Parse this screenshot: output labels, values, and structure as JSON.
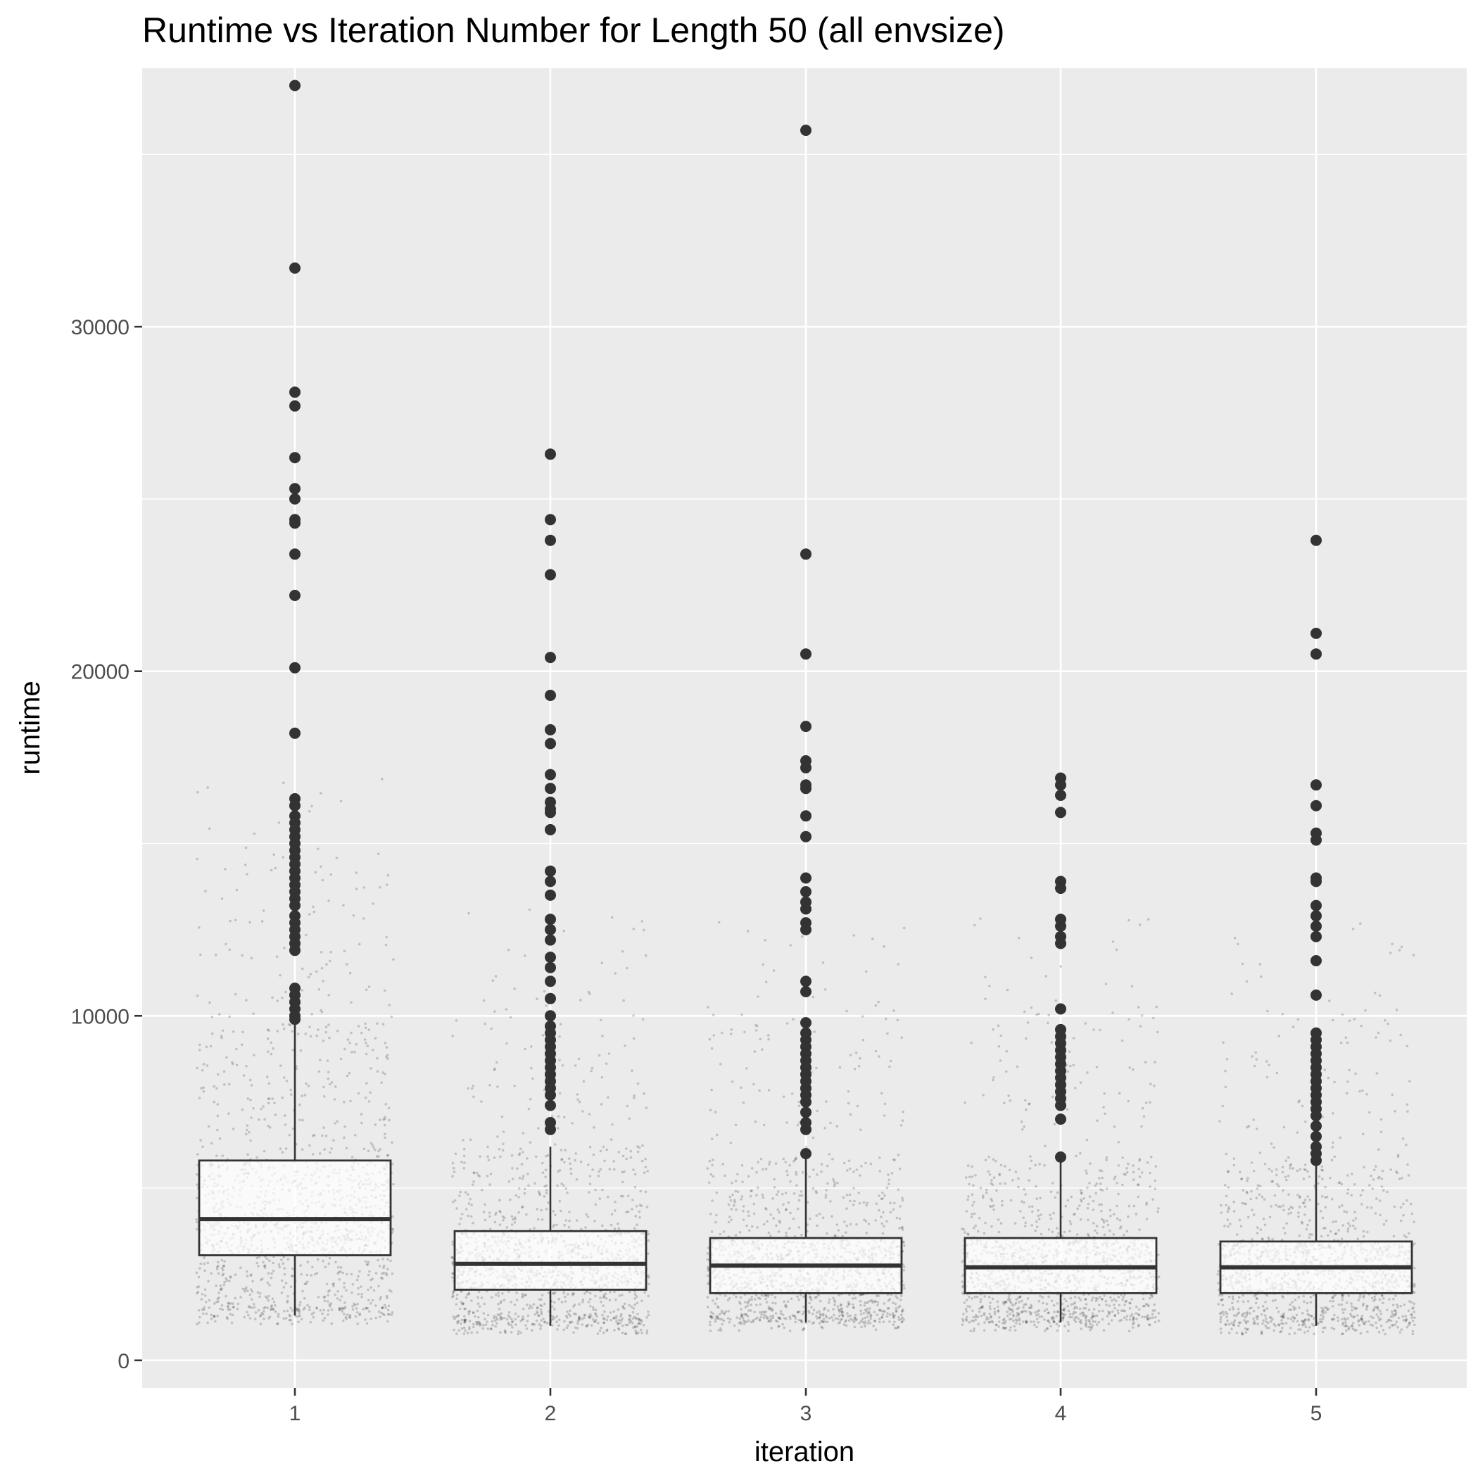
{
  "chart_data": {
    "type": "boxplot",
    "title": "Runtime vs Iteration Number for Length 50 (all envsize)",
    "xlabel": "iteration",
    "ylabel": "runtime",
    "ylim": [
      -800,
      37500
    ],
    "yticks": [
      0,
      10000,
      20000,
      30000
    ],
    "ytick_labels": [
      "0",
      "10000",
      "20000",
      "30000"
    ],
    "grid": true,
    "legend": "none",
    "colors": {
      "panel": "#ebebeb",
      "grid": "#ffffff",
      "box_fill": "#ffffff",
      "box_line": "#333333",
      "jitter": "#000000",
      "outlier": "#333333"
    },
    "categories": [
      "1",
      "2",
      "3",
      "4",
      "5"
    ],
    "boxes": [
      {
        "iteration": "1",
        "whisker_low": 1300,
        "q1": 3050,
        "median": 4100,
        "q3": 5800,
        "whisker_high": 9900,
        "outliers": [
          37000,
          31700,
          28100,
          27700,
          26200,
          25300,
          25000,
          24400,
          24300,
          23400,
          22200,
          20100,
          18200,
          16300,
          16100,
          15800,
          15600,
          15400,
          15200,
          15000,
          14800,
          14600,
          14400,
          14200,
          14000,
          13800,
          13600,
          13400,
          13200,
          12900,
          12700,
          12500,
          12300,
          12100,
          11900,
          10800,
          10600,
          10400,
          10200,
          10000,
          9900
        ]
      },
      {
        "iteration": "2",
        "whisker_low": 1000,
        "q1": 2050,
        "median": 2800,
        "q3": 3750,
        "whisker_high": 6200,
        "outliers": [
          26300,
          24400,
          23800,
          22800,
          20400,
          19300,
          18300,
          17900,
          17000,
          16600,
          16200,
          16000,
          15900,
          15400,
          14200,
          13900,
          13500,
          12800,
          12500,
          12200,
          11700,
          11400,
          11000,
          10500,
          10000,
          9700,
          9500,
          9300,
          9100,
          8900,
          8700,
          8500,
          8300,
          8100,
          7900,
          7700,
          7400,
          6900,
          6700
        ]
      },
      {
        "iteration": "3",
        "whisker_low": 1100,
        "q1": 1950,
        "median": 2750,
        "q3": 3550,
        "whisker_high": 5900,
        "outliers": [
          35700,
          23400,
          20500,
          18400,
          17400,
          17200,
          16700,
          16600,
          15800,
          15200,
          14000,
          13600,
          13300,
          13100,
          12700,
          12500,
          11000,
          10700,
          9800,
          9500,
          9300,
          9100,
          8900,
          8700,
          8500,
          8300,
          8100,
          7900,
          7700,
          7500,
          7200,
          6900,
          6700,
          6000
        ]
      },
      {
        "iteration": "4",
        "whisker_low": 1100,
        "q1": 1950,
        "median": 2700,
        "q3": 3550,
        "whisker_high": 5900,
        "outliers": [
          16900,
          16700,
          16400,
          15900,
          13900,
          13700,
          12800,
          12600,
          12300,
          12100,
          10200,
          9600,
          9400,
          9200,
          9000,
          8800,
          8600,
          8400,
          8200,
          8000,
          7800,
          7600,
          7400,
          7000,
          5900
        ]
      },
      {
        "iteration": "5",
        "whisker_low": 1000,
        "q1": 1950,
        "median": 2700,
        "q3": 3450,
        "whisker_high": 5700,
        "outliers": [
          23800,
          21100,
          20500,
          16700,
          16100,
          15300,
          15100,
          14000,
          13900,
          13200,
          12900,
          12600,
          12300,
          11600,
          10600,
          9500,
          9300,
          9100,
          8900,
          8700,
          8500,
          8300,
          8100,
          7900,
          7700,
          7500,
          7300,
          7100,
          6800,
          6500,
          6200,
          6000,
          5800
        ]
      }
    ]
  }
}
